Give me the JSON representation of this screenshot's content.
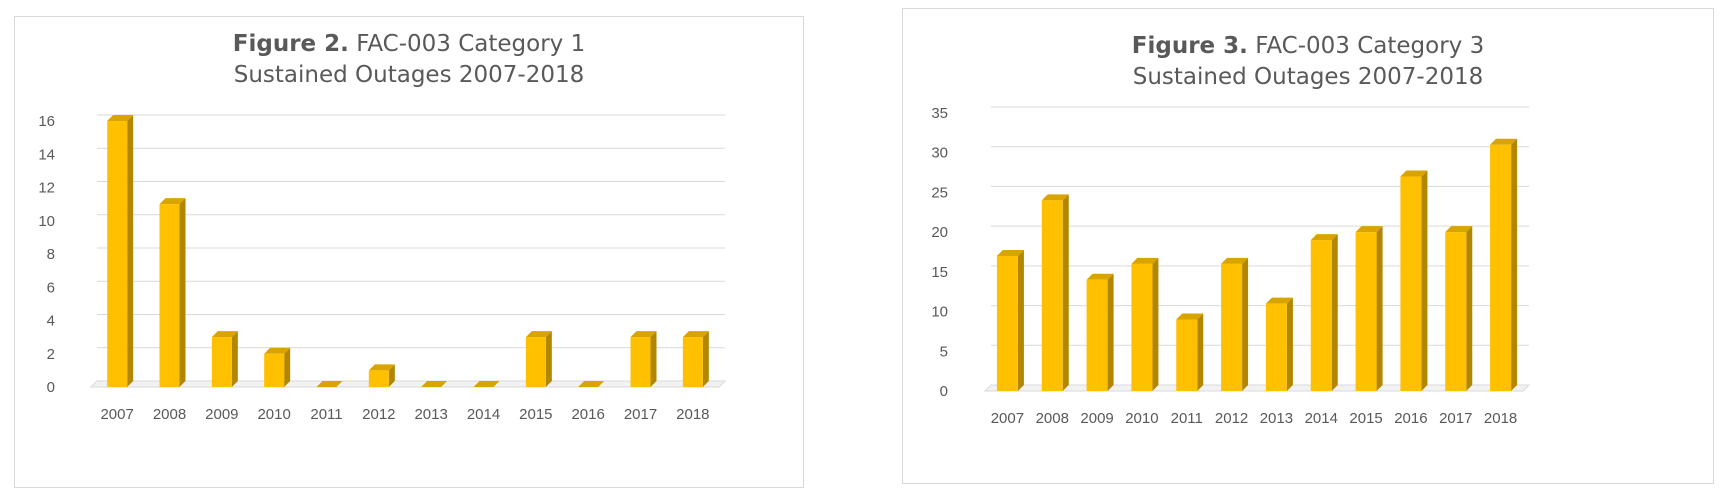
{
  "chart_data": [
    {
      "type": "bar",
      "title_bold": "Figure 2.",
      "title_rest": "FAC-003 Category 1",
      "subtitle": "Sustained Outages 2007-2018",
      "categories": [
        "2007",
        "2008",
        "2009",
        "2010",
        "2011",
        "2012",
        "2013",
        "2014",
        "2015",
        "2016",
        "2017",
        "2018"
      ],
      "values": [
        16,
        11,
        3,
        2,
        0,
        1,
        0,
        0,
        3,
        0,
        3,
        3
      ],
      "ylim": [
        0,
        16
      ],
      "yticks": [
        "0",
        "2",
        "4",
        "6",
        "8",
        "10",
        "12",
        "14",
        "16"
      ],
      "grid": true,
      "bar_color": "#ffc000",
      "bar_side_color": "#b38600",
      "bar_top_color": "#d9a300"
    },
    {
      "type": "bar",
      "title_bold": "Figure 3.",
      "title_rest": "FAC-003 Category 3",
      "subtitle": "Sustained Outages 2007-2018",
      "categories": [
        "2007",
        "2008",
        "2009",
        "2010",
        "2011",
        "2012",
        "2013",
        "2014",
        "2015",
        "2016",
        "2017",
        "2018"
      ],
      "values": [
        17,
        24,
        14,
        16,
        9,
        16,
        11,
        19,
        20,
        27,
        20,
        31
      ],
      "ylim": [
        0,
        35
      ],
      "yticks": [
        "0",
        "5",
        "10",
        "15",
        "20",
        "25",
        "30",
        "35"
      ],
      "grid": true,
      "bar_color": "#ffc000",
      "bar_side_color": "#b38600",
      "bar_top_color": "#d9a300"
    }
  ]
}
